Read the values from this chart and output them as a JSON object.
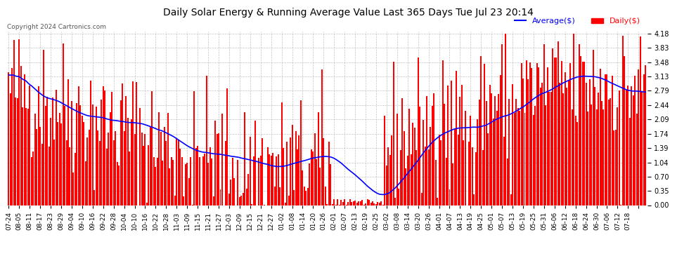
{
  "title": "Daily Solar Energy & Running Average Value Last 365 Days Tue Jul 23 20:14",
  "copyright": "Copyright 2024 Cartronics.com",
  "ylabel_right": [
    "4.18",
    "3.83",
    "3.48",
    "3.13",
    "2.79",
    "2.44",
    "2.09",
    "1.74",
    "1.39",
    "1.04",
    "0.70",
    "0.35",
    "0.00"
  ],
  "ymax": 4.18,
  "ymin": 0.0,
  "bar_color": "#FF0000",
  "avg_color": "#0000FF",
  "background_color": "#FFFFFF",
  "grid_color": "#AAAAAA",
  "legend_avg": "Average($)",
  "legend_daily": "Daily($)",
  "title_color": "#000000",
  "copyright_color": "#555555",
  "x_labels": [
    "07-24",
    "08-05",
    "08-11",
    "08-17",
    "08-23",
    "08-29",
    "09-04",
    "09-10",
    "09-16",
    "09-22",
    "09-28",
    "10-04",
    "10-10",
    "10-16",
    "10-22",
    "10-28",
    "11-03",
    "11-09",
    "11-15",
    "11-21",
    "11-27",
    "12-03",
    "12-09",
    "12-15",
    "12-21",
    "12-27",
    "01-02",
    "01-08",
    "01-14",
    "01-20",
    "01-26",
    "02-01",
    "02-07",
    "02-13",
    "02-19",
    "02-25",
    "03-02",
    "03-08",
    "03-14",
    "03-20",
    "03-26",
    "04-01",
    "04-07",
    "04-13",
    "04-19",
    "04-25",
    "05-01",
    "05-07",
    "05-13",
    "05-19",
    "05-25",
    "05-31",
    "06-06",
    "06-12",
    "06-18",
    "06-24",
    "06-30",
    "07-06",
    "07-12",
    "07-18"
  ],
  "n_bars": 365,
  "seed": 42
}
